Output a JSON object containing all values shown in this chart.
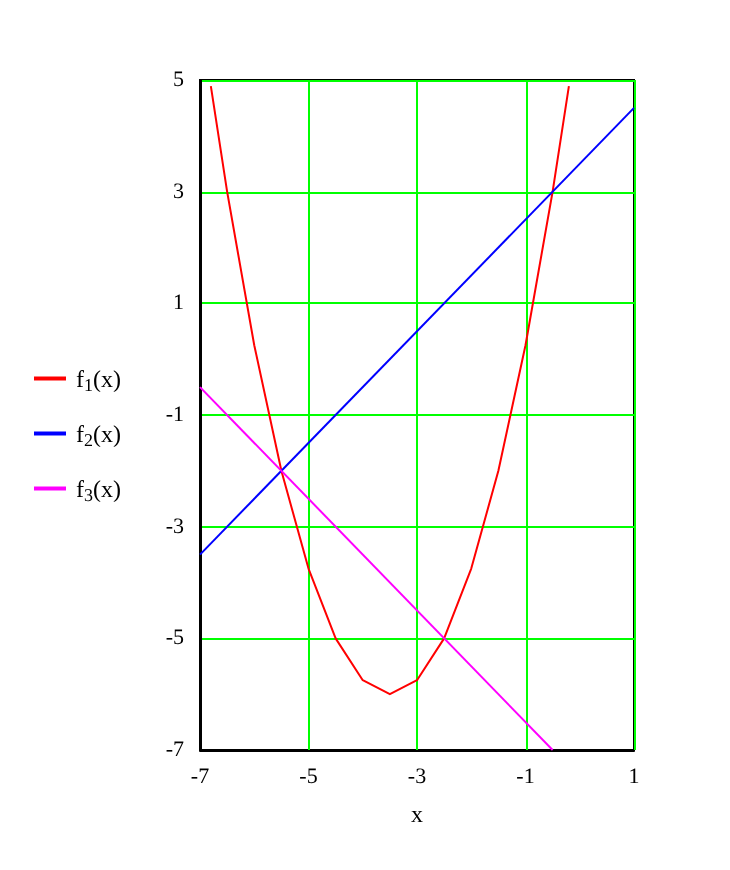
{
  "chart_data": {
    "type": "line",
    "xlabel": "x",
    "xlim": [
      -7,
      1
    ],
    "xticks": [
      -7,
      -5,
      -3,
      -1,
      1
    ],
    "ylim": [
      -7,
      5
    ],
    "yticks": [
      -7,
      -5,
      -3,
      -1,
      1,
      3,
      5
    ],
    "grid": true,
    "legend": "left",
    "marker": "none",
    "line_style": "solid",
    "series": [
      {
        "name": "f$_{1}$(x)",
        "color": "#ff0000",
        "x": [
          -6.8,
          -6.5,
          -6,
          -5.5,
          -5,
          -4.5,
          -4,
          -3.5,
          -3,
          -2.5,
          -2,
          -1.5,
          -1,
          -0.5,
          -0.2
        ],
        "values": [
          4.89,
          3,
          0.25,
          -2,
          -3.75,
          -5,
          -5.75,
          -6,
          -5.75,
          -5,
          -3.75,
          -2,
          0.25,
          3,
          4.89
        ]
      },
      {
        "name": "f$_{2}$(x)",
        "color": "#0000ff",
        "x": [
          -7,
          1
        ],
        "values": [
          -3.5,
          4.5
        ]
      },
      {
        "name": "f$_{3}$(x)",
        "color": "#ff00ff",
        "x": [
          -7,
          -0.5
        ],
        "values": [
          -0.5,
          -7
        ]
      }
    ]
  }
}
